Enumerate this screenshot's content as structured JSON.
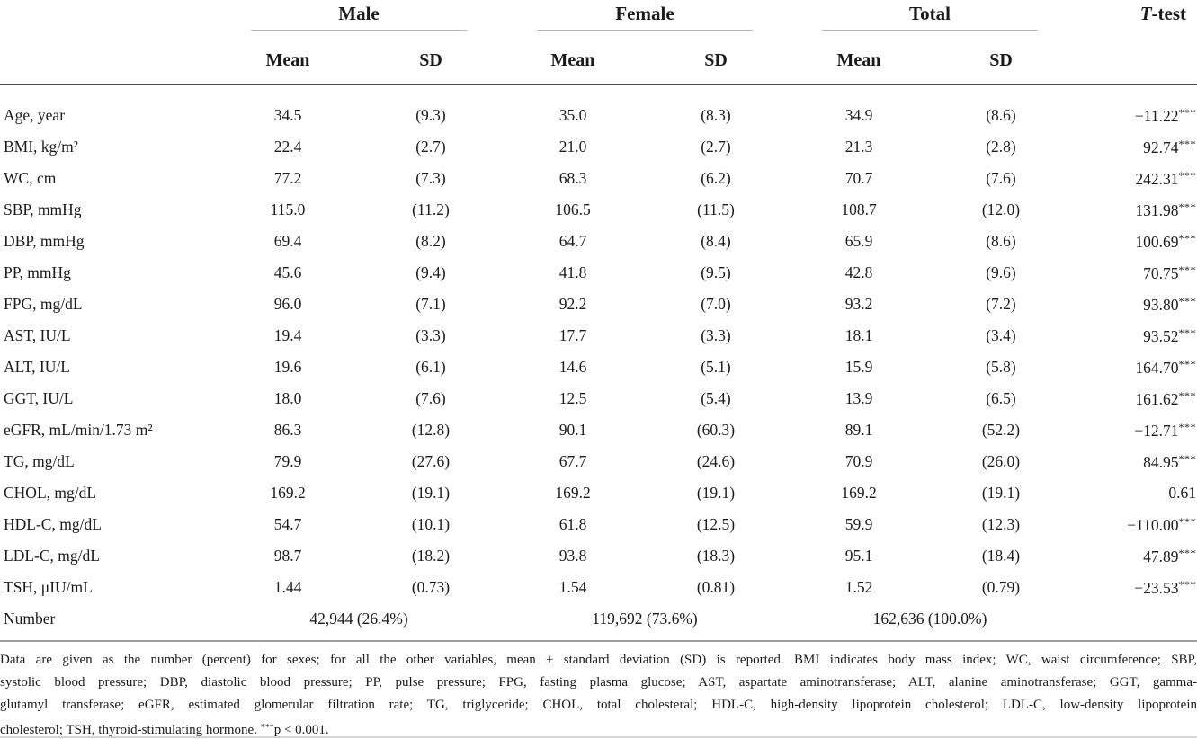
{
  "colors": {
    "text": "#1b1b1b",
    "header_rule_dark": "#474747",
    "group_rule_gray": "#b9b9b9",
    "footnote_rule_gray": "#9e9e9e",
    "bottom_rule_light": "#d6d6d6",
    "background": "#ffffff"
  },
  "table": {
    "groups": [
      {
        "label": "Male"
      },
      {
        "label": "Female"
      },
      {
        "label": "Total"
      }
    ],
    "ttest_header": {
      "italic": "T",
      "rest": "-test"
    },
    "subheaders": {
      "mean": "Mean",
      "sd": "SD"
    },
    "rows": [
      {
        "label": "Age, year",
        "male_mean": "34.5",
        "male_sd": "(9.3)",
        "female_mean": "35.0",
        "female_sd": "(8.3)",
        "total_mean": "34.9",
        "total_sd": "(8.6)",
        "t_test": "−11.22***"
      },
      {
        "label": "BMI, kg/m²",
        "male_mean": "22.4",
        "male_sd": "(2.7)",
        "female_mean": "21.0",
        "female_sd": "(2.7)",
        "total_mean": "21.3",
        "total_sd": "(2.8)",
        "t_test": "92.74***"
      },
      {
        "label": "WC, cm",
        "male_mean": "77.2",
        "male_sd": "(7.3)",
        "female_mean": "68.3",
        "female_sd": "(6.2)",
        "total_mean": "70.7",
        "total_sd": "(7.6)",
        "t_test": "242.31***"
      },
      {
        "label": "SBP, mmHg",
        "male_mean": "115.0",
        "male_sd": "(11.2)",
        "female_mean": "106.5",
        "female_sd": "(11.5)",
        "total_mean": "108.7",
        "total_sd": "(12.0)",
        "t_test": "131.98***"
      },
      {
        "label": "DBP, mmHg",
        "male_mean": "69.4",
        "male_sd": "(8.2)",
        "female_mean": "64.7",
        "female_sd": "(8.4)",
        "total_mean": "65.9",
        "total_sd": "(8.6)",
        "t_test": "100.69***"
      },
      {
        "label": "PP, mmHg",
        "male_mean": "45.6",
        "male_sd": "(9.4)",
        "female_mean": "41.8",
        "female_sd": "(9.5)",
        "total_mean": "42.8",
        "total_sd": "(9.6)",
        "t_test": "70.75***"
      },
      {
        "label": "FPG, mg/dL",
        "male_mean": "96.0",
        "male_sd": "(7.1)",
        "female_mean": "92.2",
        "female_sd": "(7.0)",
        "total_mean": "93.2",
        "total_sd": "(7.2)",
        "t_test": "93.80***"
      },
      {
        "label": "AST, IU/L",
        "male_mean": "19.4",
        "male_sd": "(3.3)",
        "female_mean": "17.7",
        "female_sd": "(3.3)",
        "total_mean": "18.1",
        "total_sd": "(3.4)",
        "t_test": "93.52***"
      },
      {
        "label": "ALT, IU/L",
        "male_mean": "19.6",
        "male_sd": "(6.1)",
        "female_mean": "14.6",
        "female_sd": "(5.1)",
        "total_mean": "15.9",
        "total_sd": "(5.8)",
        "t_test": "164.70***"
      },
      {
        "label": "GGT, IU/L",
        "male_mean": "18.0",
        "male_sd": "(7.6)",
        "female_mean": "12.5",
        "female_sd": "(5.4)",
        "total_mean": "13.9",
        "total_sd": "(6.5)",
        "t_test": "161.62***"
      },
      {
        "label": "eGFR, mL/min/1.73 m²",
        "male_mean": "86.3",
        "male_sd": "(12.8)",
        "female_mean": "90.1",
        "female_sd": "(60.3)",
        "total_mean": "89.1",
        "total_sd": "(52.2)",
        "t_test": "−12.71***"
      },
      {
        "label": "TG, mg/dL",
        "male_mean": "79.9",
        "male_sd": "(27.6)",
        "female_mean": "67.7",
        "female_sd": "(24.6)",
        "total_mean": "70.9",
        "total_sd": "(26.0)",
        "t_test": "84.95***"
      },
      {
        "label": "CHOL, mg/dL",
        "male_mean": "169.2",
        "male_sd": "(19.1)",
        "female_mean": "169.2",
        "female_sd": "(19.1)",
        "total_mean": "169.2",
        "total_sd": "(19.1)",
        "t_test": "0.61"
      },
      {
        "label": "HDL-C, mg/dL",
        "male_mean": "54.7",
        "male_sd": "(10.1)",
        "female_mean": "61.8",
        "female_sd": "(12.5)",
        "total_mean": "59.9",
        "total_sd": "(12.3)",
        "t_test": "−110.00***"
      },
      {
        "label": "LDL-C, mg/dL",
        "male_mean": "98.7",
        "male_sd": "(18.2)",
        "female_mean": "93.8",
        "female_sd": "(18.3)",
        "total_mean": "95.1",
        "total_sd": "(18.4)",
        "t_test": "47.89***"
      },
      {
        "label": "TSH, μIU/mL",
        "male_mean": "1.44",
        "male_sd": "(0.73)",
        "female_mean": "1.54",
        "female_sd": "(0.81)",
        "total_mean": "1.52",
        "total_sd": "(0.79)",
        "t_test": "−23.53***"
      }
    ],
    "number_row": {
      "label": "Number",
      "male": "42,944 (26.4%)",
      "female": "119,692 (73.6%)",
      "total": "162,636 (100.0%)"
    }
  },
  "footnote": {
    "lines": [
      "Data are given as the number (percent) for sexes; for all the other variables, mean ± standard deviation (SD) is reported. BMI indicates body mass index; WC, waist circumference; SBP,",
      "systolic blood pressure; DBP, diastolic blood pressure; PP, pulse pressure; FPG, fasting plasma glucose; AST, aspartate aminotransferase; ALT, alanine aminotransferase; GGT, gamma-",
      "glutamyl transferase; eGFR, estimated glomerular filtration rate; TG, triglyceride; CHOL, total cholesteral; HDL-C, high-density lipoprotein cholesterol; LDL-C, low-density lipoprotein",
      "cholesterol; TSH, thyroid-stimulating hormone. ***p < 0.001."
    ]
  }
}
